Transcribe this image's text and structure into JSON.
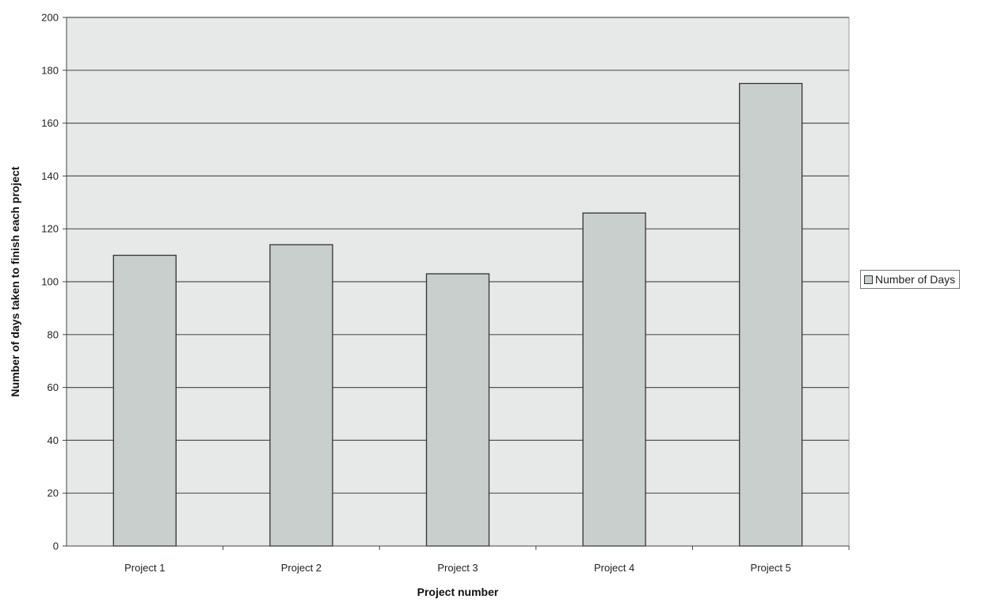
{
  "chart_data": {
    "type": "bar",
    "title": "",
    "xlabel": "Project number",
    "ylabel": "Number of days taken to finish each project",
    "categories": [
      "Project 1",
      "Project 2",
      "Project 3",
      "Project 4",
      "Project 5"
    ],
    "series": [
      {
        "name": "Number of Days",
        "values": [
          110,
          114,
          103,
          126,
          175
        ]
      }
    ],
    "ylim": [
      0,
      200
    ],
    "yticks": [
      "0",
      "20",
      "40",
      "60",
      "80",
      "100",
      "120",
      "140",
      "160",
      "180",
      "200"
    ],
    "grid": true,
    "legend_position": "right",
    "colors": {
      "plot_bg": "#e6e9e7",
      "bar_fill": "#c8cfcc",
      "bar_stroke": "#333333",
      "grid": "#555555"
    }
  }
}
